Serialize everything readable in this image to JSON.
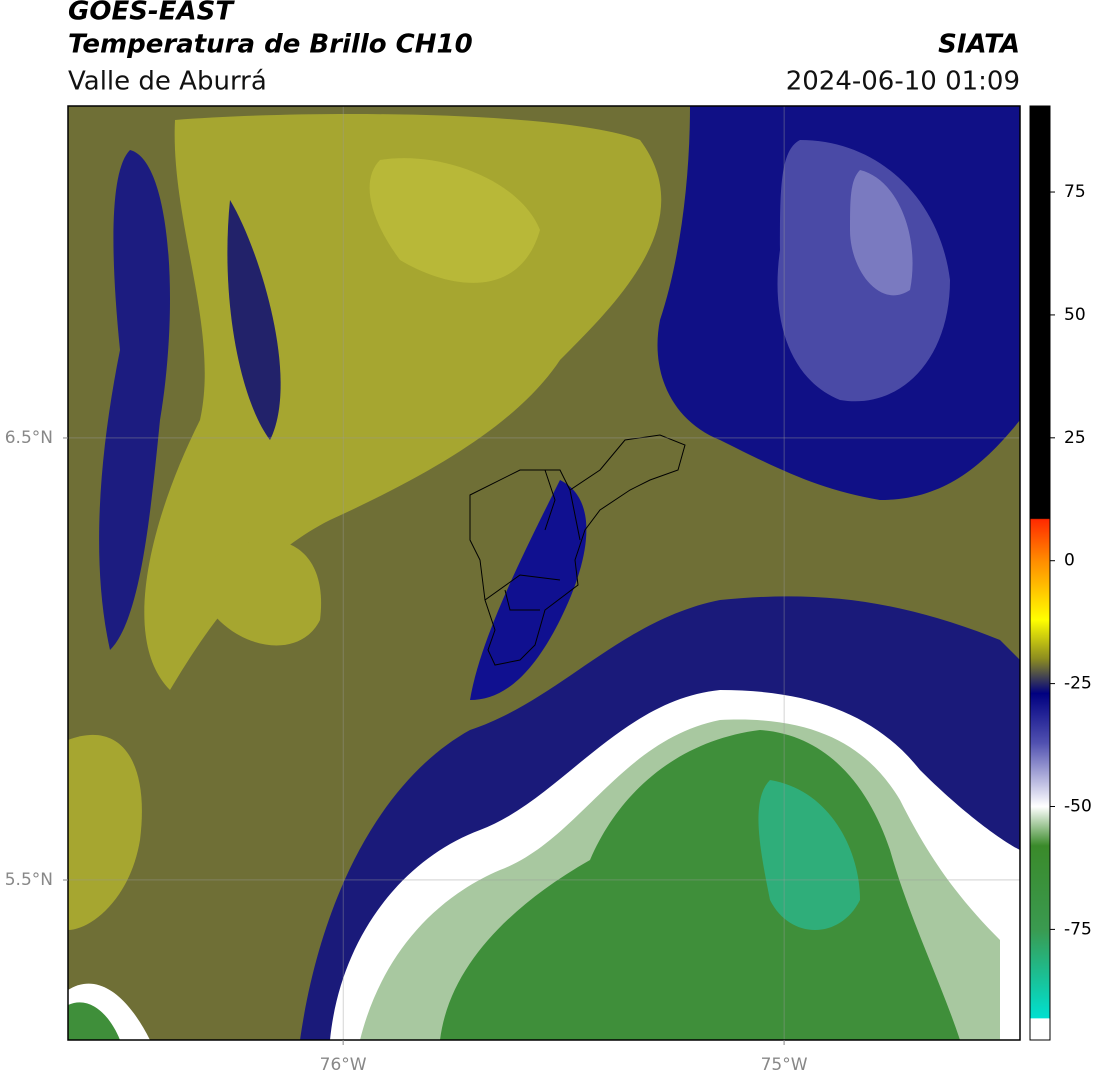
{
  "header": {
    "title": "GOES-EAST",
    "subtitle": "Temperatura de Brillo CH10",
    "region": "Valle de Aburrá",
    "source": "SIATA",
    "timestamp": "2024-06-10 01:09"
  },
  "chart_data": {
    "type": "map",
    "xlim": [
      -76.624,
      -74.465
    ],
    "ylim": [
      5.138,
      7.251
    ],
    "xticks": [
      {
        "value": -76,
        "label": "76°W"
      },
      {
        "value": -75,
        "label": "75°W"
      }
    ],
    "yticks": [
      {
        "value": 5.5,
        "label": "5.5°N"
      },
      {
        "value": 6.5,
        "label": "6.5°N"
      }
    ],
    "grid": true,
    "colorbar": {
      "lim": [
        -97.5,
        92.5
      ],
      "ticks": [
        -75,
        -50,
        -25,
        0,
        25,
        50,
        75
      ],
      "stops": [
        {
          "value": 92.5,
          "color": "#000000"
        },
        {
          "value": 8.6,
          "color": "#000000"
        },
        {
          "value": 8.4,
          "color": "#ff2a00"
        },
        {
          "value": 0,
          "color": "#ff8c00"
        },
        {
          "value": -12,
          "color": "#ffff00"
        },
        {
          "value": -20,
          "color": "#8b8b20"
        },
        {
          "value": -27,
          "color": "#000080"
        },
        {
          "value": -37,
          "color": "#5050b0"
        },
        {
          "value": -50,
          "color": "#ffffff"
        },
        {
          "value": -58,
          "color": "#3a8a2a"
        },
        {
          "value": -75,
          "color": "#3a9a50"
        },
        {
          "value": -93,
          "color": "#00e0d0"
        },
        {
          "value": -93.2,
          "color": "#ffffff"
        },
        {
          "value": -97.5,
          "color": "#ffffff"
        }
      ]
    }
  }
}
